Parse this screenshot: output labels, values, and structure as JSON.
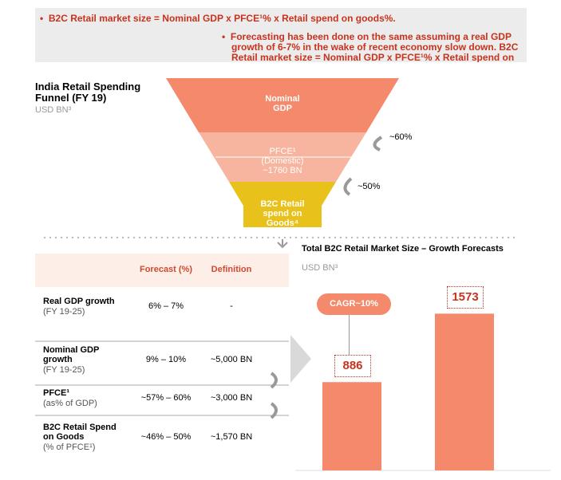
{
  "header": {
    "bullets": [
      "B2C Retail market size = Nominal GDP x PFCE¹% x Retail spend on goods%.",
      "Forecasting has been done on the same assuming a real GDP growth of 6-7% in the wake of recent economy slow down. B2C Retail market size = Nominal GDP x PFCE¹% x Retail spend on"
    ]
  },
  "funnel": {
    "title": "India Retail Spending Funnel (FY 19)",
    "unit": "USD BN³",
    "levels": [
      "Nominal GDP",
      "PFCE¹ (Domestic) ~1760 BN",
      "B2C Retail spend on Goods⁴"
    ],
    "steps": [
      "~60%",
      "~50%"
    ]
  },
  "table": {
    "columns": [
      "Forecast (%)",
      "Definition"
    ],
    "rows": [
      {
        "label": "Real GDP growth",
        "sub": "(FY 19-25)",
        "forecast": "6% – 7%",
        "definition": "-"
      },
      {
        "label": "Nominal GDP growth",
        "sub": "(FY 19-25)",
        "forecast": "9% – 10%",
        "definition": "~5,000 BN"
      },
      {
        "label": "PFCE¹",
        "sub": "(as% of GDP)",
        "forecast": "~57% – 60%",
        "definition": "~3,000 BN"
      },
      {
        "label": "B2C Retail Spend on Goods",
        "sub": "(% of PFCE¹)",
        "forecast": "~46% – 50%",
        "definition": "~1,570 BN"
      }
    ]
  },
  "chart": {
    "title": "Total B2C Retail Market Size – Growth Forecasts",
    "unit": "USD BN³",
    "values": [
      886,
      1573
    ],
    "color": "#f4896b",
    "annotation": "CAGR~10%"
  }
}
